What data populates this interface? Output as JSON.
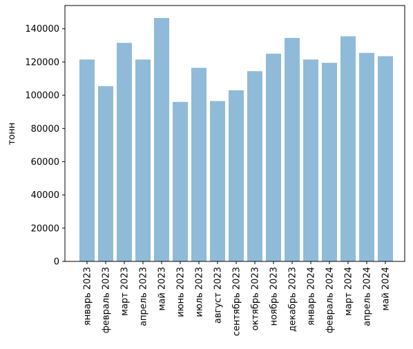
{
  "chart_data": {
    "type": "bar",
    "title": "",
    "xlabel": "",
    "ylabel": "тонн",
    "ylim": [
      0,
      154000
    ],
    "yticks": [
      0,
      20000,
      40000,
      60000,
      80000,
      100000,
      120000,
      140000
    ],
    "ytick_labels": [
      "0",
      "20000",
      "40000",
      "60000",
      "80000",
      "100000",
      "120000",
      "140000"
    ],
    "grid": false,
    "legend": "none",
    "bar_color": "#8fbbd9",
    "categories": [
      "январь 2023",
      "февраль 2023",
      "март 2023",
      "апрель 2023",
      "май 2023",
      "июнь 2023",
      "июль 2023",
      "август 2023",
      "сентябрь 2023",
      "октябрь 2023",
      "ноябрь 2023",
      "декабрь 2023",
      "январь 2024",
      "февраль 2024",
      "март 2024",
      "апрель 2024",
      "май 2024"
    ],
    "values": [
      121500,
      105500,
      131500,
      121500,
      146500,
      96000,
      116500,
      96500,
      103000,
      114500,
      125000,
      134500,
      121500,
      119500,
      135500,
      125500,
      123500
    ]
  }
}
